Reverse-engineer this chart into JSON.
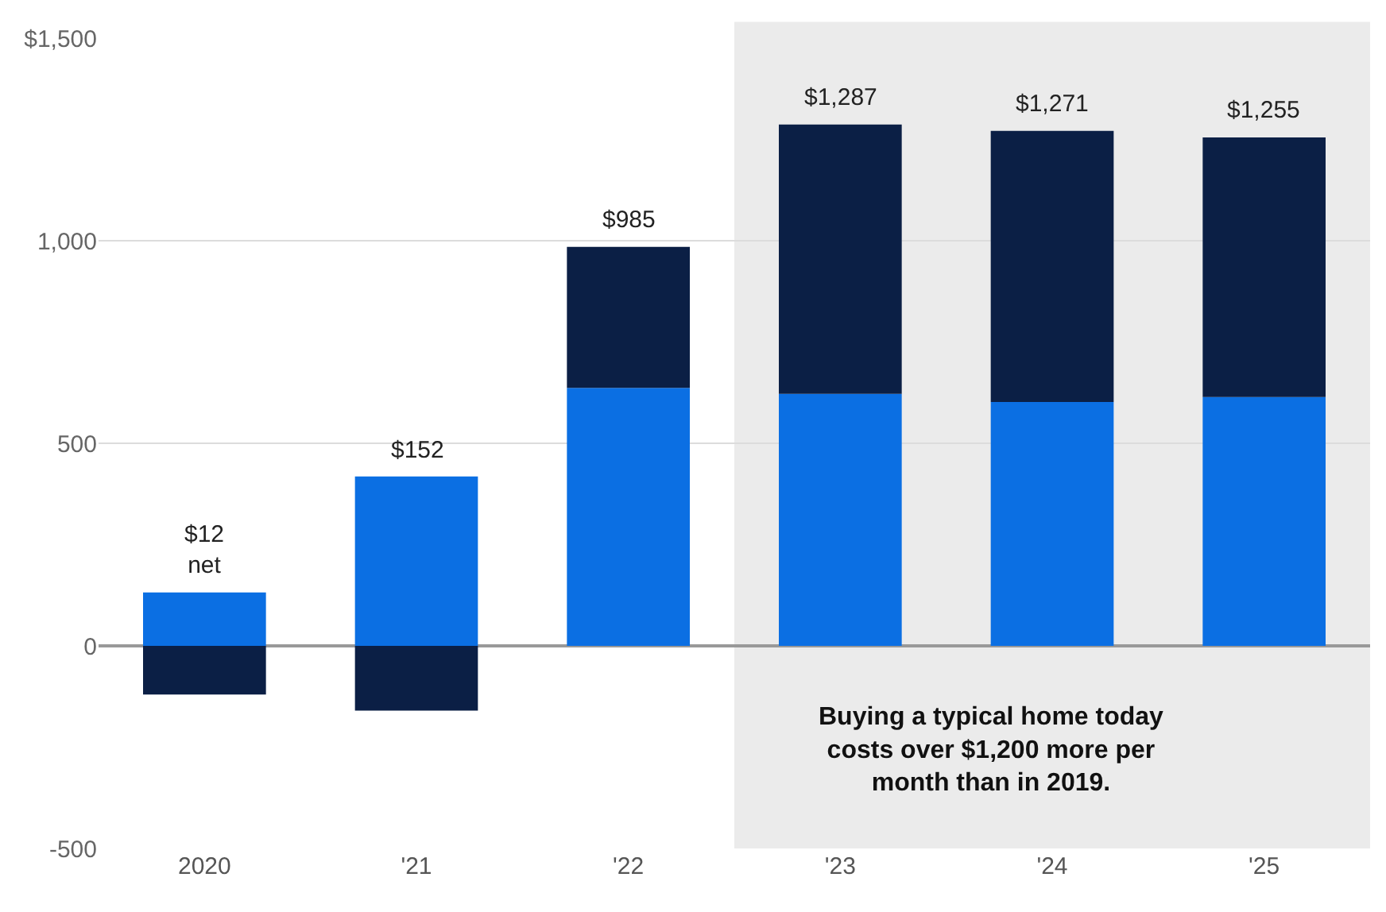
{
  "chart_data": {
    "type": "bar",
    "stacked": true,
    "categories": [
      "2020",
      "'21",
      "'22",
      "'23",
      "'24",
      "'25"
    ],
    "series": [
      {
        "color": "#0b6fe3",
        "values": [
          132,
          418,
          637,
          622,
          602,
          614
        ]
      },
      {
        "color": "#0b1f45",
        "values": [
          -120,
          -160,
          348,
          665,
          669,
          641
        ]
      }
    ],
    "ylim": [
      -500,
      1500
    ],
    "yticks": [
      {
        "value": -500,
        "label": "-500"
      },
      {
        "value": 0,
        "label": "0"
      },
      {
        "value": 500,
        "label": "500"
      },
      {
        "value": 1000,
        "label": "1,000"
      },
      {
        "value": 1500,
        "label": "$1,500"
      }
    ],
    "grid": "y",
    "bands": [
      {
        "axis": "x",
        "from": "'23",
        "to": "'25",
        "color": "#ebebeb"
      }
    ],
    "annotations": [
      "Buying a typical home today\ncosts over $1,200 more per\nmonth than in 2019.",
      {
        "text": "$12\nnet",
        "x": "2020",
        "y": 132
      },
      {
        "text": "$152",
        "x": "'21",
        "y": 418
      },
      {
        "text": "$985",
        "x": "'22",
        "y": 985
      },
      {
        "text": "$1,287",
        "x": "'23",
        "y": 1287
      },
      {
        "text": "$1,271",
        "x": "'24",
        "y": 1271
      },
      {
        "text": "$1,255",
        "x": "'25",
        "y": 1255
      }
    ]
  }
}
